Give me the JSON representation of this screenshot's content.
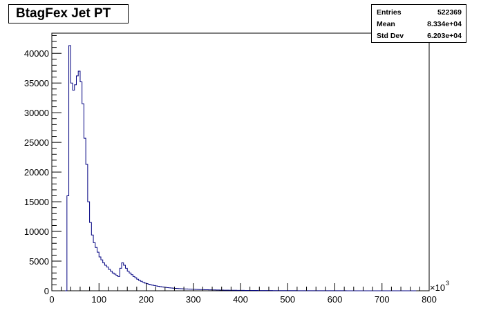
{
  "title": "BtagFex Jet PT",
  "stats": [
    {
      "label": "Entries",
      "value": "522369"
    },
    {
      "label": "Mean",
      "value": "8.334e+04"
    },
    {
      "label": "Std Dev",
      "value": "6.203e+04"
    }
  ],
  "axis_multiplier": "×10",
  "axis_multiplier_exp": "3",
  "colors": {
    "line": "#000080",
    "axis": "#000000"
  },
  "chart_data": {
    "type": "bar",
    "style": "step-histogram",
    "xlabel": "",
    "ylabel": "",
    "xlim": [
      0,
      800
    ],
    "ylim": [
      0,
      43400
    ],
    "x_ticks": [
      0,
      100,
      200,
      300,
      400,
      500,
      600,
      700,
      800
    ],
    "y_ticks": [
      0,
      5000,
      10000,
      15000,
      20000,
      25000,
      30000,
      35000,
      40000
    ],
    "bin_width": 4,
    "x_start": 28,
    "values": [
      0,
      16000,
      41300,
      35000,
      33800,
      34700,
      36200,
      37000,
      35200,
      31500,
      25700,
      21300,
      15000,
      11500,
      9400,
      8100,
      7300,
      6500,
      5700,
      5200,
      4700,
      4300,
      4000,
      3600,
      3300,
      3000,
      2800,
      2600,
      2400,
      3800,
      4700,
      4300,
      3800,
      3300,
      3000,
      2700,
      2400,
      2200,
      1950,
      1750,
      1600,
      1450,
      1300,
      1200,
      1100,
      1000,
      950,
      880,
      820,
      760,
      700,
      650,
      610,
      570,
      530,
      500,
      470,
      440,
      410,
      390,
      370,
      350,
      330,
      310,
      300,
      285,
      270,
      255,
      240,
      230,
      220,
      210,
      200,
      190,
      180,
      172,
      164,
      156,
      148,
      140,
      133,
      126,
      120,
      114,
      108,
      103,
      98,
      93,
      89,
      85,
      81,
      77,
      74,
      71,
      68,
      65,
      62,
      60,
      57,
      55,
      53,
      51,
      49,
      47,
      45,
      43,
      41,
      40,
      38,
      37,
      35,
      34,
      33,
      31,
      30,
      29,
      28,
      27,
      26,
      25,
      24,
      23,
      22,
      21,
      20,
      19,
      18,
      18,
      17,
      16,
      16,
      15,
      14,
      14,
      13,
      13,
      12,
      12,
      11,
      11,
      10,
      10,
      10,
      9,
      9,
      9,
      8,
      8,
      8,
      7,
      7,
      7,
      6,
      6,
      6,
      6,
      5,
      5,
      5,
      5,
      5,
      4,
      4,
      4,
      4,
      4,
      3,
      3,
      3,
      3,
      3,
      3,
      3,
      2,
      2,
      2,
      2,
      2,
      2,
      2,
      2,
      2,
      2,
      2,
      1,
      1
    ],
    "legend_position": "top-right",
    "grid": false
  }
}
